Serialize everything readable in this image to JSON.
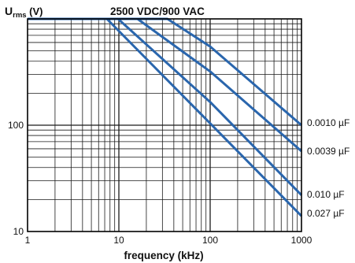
{
  "chart_data": {
    "type": "line",
    "title": "2500 VDC/900 VAC",
    "ylabel_main": "U",
    "ylabel_sub": "rms",
    "ylabel_unit": " (V)",
    "xlabel": "frequency (kHz)",
    "x_scale": "log",
    "y_scale": "log",
    "xlim": [
      1,
      1000
    ],
    "ylim": [
      10,
      1000
    ],
    "grid": true,
    "x_tick_labels": [
      "1",
      "10",
      "100",
      "1000"
    ],
    "y_tick_labels": [
      "10",
      "100"
    ],
    "line_color": "#2a66ad",
    "series": [
      {
        "name": "0.0010 µF",
        "x": [
          1,
          34,
          100,
          1000
        ],
        "y": [
          1000,
          1000,
          550,
          100
        ]
      },
      {
        "name": "0.0039 µF",
        "x": [
          1,
          16,
          100,
          1000
        ],
        "y": [
          1000,
          1000,
          320,
          57
        ]
      },
      {
        "name": "0.010 µF",
        "x": [
          1,
          9.8,
          100,
          1000
        ],
        "y": [
          1000,
          1000,
          165,
          22
        ]
      },
      {
        "name": "0.027 µF",
        "x": [
          1,
          7.4,
          100,
          1000
        ],
        "y": [
          1000,
          1000,
          104,
          14
        ]
      }
    ]
  }
}
